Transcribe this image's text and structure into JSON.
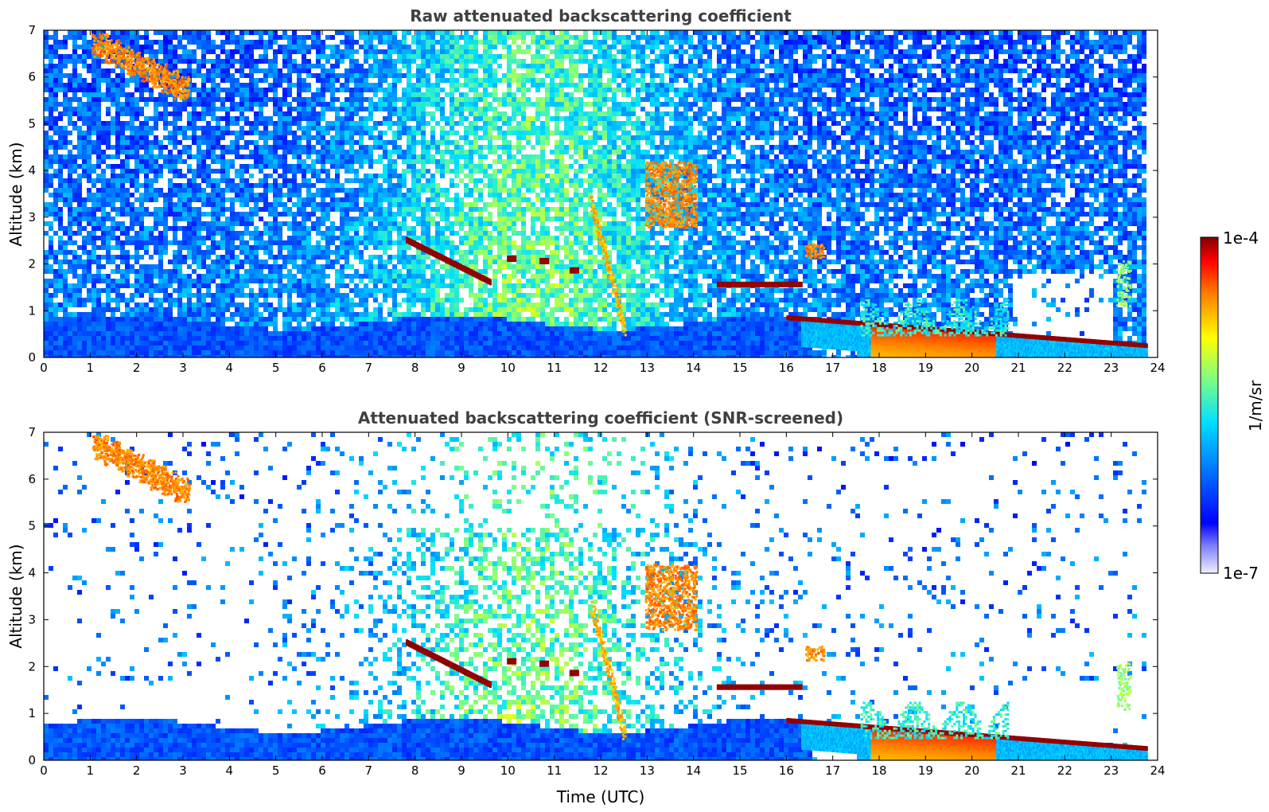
{
  "chart_data": [
    {
      "type": "heatmap",
      "panel": "top",
      "title": "Raw attenuated backscattering coefficient",
      "xlabel": "",
      "ylabel": "Altitude (km)",
      "xlim": [
        0,
        24
      ],
      "ylim": [
        0,
        7
      ],
      "xticks": [
        0,
        1,
        2,
        3,
        4,
        5,
        6,
        7,
        8,
        9,
        10,
        11,
        12,
        13,
        14,
        15,
        16,
        17,
        18,
        19,
        20,
        21,
        22,
        23,
        24
      ],
      "yticks": [
        0,
        1,
        2,
        3,
        4,
        5,
        6,
        7
      ],
      "data_end_time": 23.75,
      "features": [
        {
          "name": "boundary layer",
          "t": [
            0,
            16.3
          ],
          "alt": [
            0,
            1.0
          ],
          "level": "low"
        },
        {
          "name": "cirrus",
          "t": [
            1.0,
            3.2
          ],
          "alt": [
            5.5,
            7.0
          ],
          "level": "high"
        },
        {
          "name": "cloud layer",
          "t": [
            7.8,
            9.6
          ],
          "alt_start": 2.5,
          "alt_end": 1.6,
          "level": "very high"
        },
        {
          "name": "fall streak",
          "t": [
            11.8,
            12.5
          ],
          "alt_start": 3.3,
          "alt_end": 0.6,
          "level": "high"
        },
        {
          "name": "mid-level cloud",
          "t": [
            12.9,
            14.0
          ],
          "alt": [
            2.8,
            4.2
          ],
          "level": "high"
        },
        {
          "name": "cloud layer",
          "t": [
            14.5,
            16.3
          ],
          "alt": [
            1.4,
            1.6
          ],
          "level": "very high"
        },
        {
          "name": "low cloud",
          "t": [
            16.0,
            23.75
          ],
          "alt_start": 0.85,
          "alt_end": 0.25,
          "level": "very high"
        }
      ]
    },
    {
      "type": "heatmap",
      "panel": "bottom",
      "title": "Attenuated backscattering coefficient (SNR-screened)",
      "xlabel": "Time (UTC)",
      "ylabel": "Altitude (km)",
      "xlim": [
        0,
        24
      ],
      "ylim": [
        0,
        7
      ],
      "xticks": [
        0,
        1,
        2,
        3,
        4,
        5,
        6,
        7,
        8,
        9,
        10,
        11,
        12,
        13,
        14,
        15,
        16,
        17,
        18,
        19,
        20,
        21,
        22,
        23,
        24
      ],
      "yticks": [
        0,
        1,
        2,
        3,
        4,
        5,
        6,
        7
      ],
      "data_end_time": 23.75,
      "screening": "SNR-screened"
    }
  ],
  "colorbar": {
    "label": "1/m/sr",
    "max_label": "1e-4",
    "min_label": "1e-7",
    "colormap": "jet"
  }
}
